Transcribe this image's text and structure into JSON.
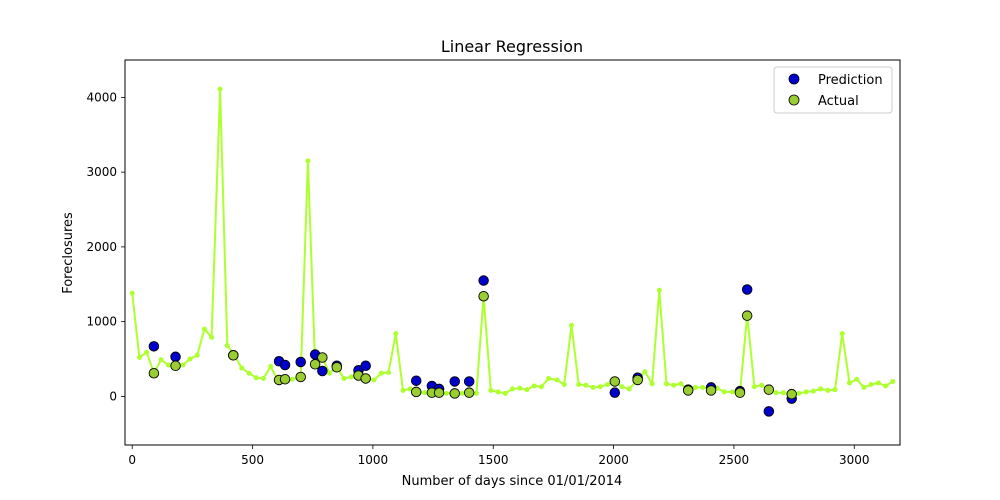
{
  "chart_data": {
    "type": "scatter",
    "title": "Linear Regression",
    "xlabel": "Number of days since 01/01/2014",
    "ylabel": "Foreclosures",
    "xlim": [
      -30,
      3190
    ],
    "ylim": [
      -650,
      4500
    ],
    "xticks": [
      0,
      500,
      1000,
      1500,
      2000,
      2500,
      3000
    ],
    "yticks": [
      0,
      1000,
      2000,
      3000,
      4000
    ],
    "grid": false,
    "legend_position": "top-right",
    "line": {
      "color": "#adff2f",
      "x": [
        0,
        30,
        60,
        90,
        120,
        150,
        180,
        210,
        240,
        270,
        300,
        330,
        365,
        395,
        425,
        455,
        485,
        515,
        545,
        575,
        605,
        635,
        665,
        700,
        730,
        760,
        790,
        820,
        850,
        880,
        910,
        940,
        975,
        1005,
        1035,
        1065,
        1095,
        1125,
        1155,
        1185,
        1215,
        1245,
        1275,
        1305,
        1340,
        1370,
        1400,
        1430,
        1460,
        1490,
        1520,
        1550,
        1580,
        1610,
        1640,
        1670,
        1700,
        1730,
        1765,
        1795,
        1825,
        1855,
        1885,
        1915,
        1945,
        1975,
        2005,
        2035,
        2065,
        2100,
        2130,
        2160,
        2190,
        2220,
        2250,
        2280,
        2310,
        2340,
        2370,
        2400,
        2430,
        2460,
        2495,
        2525,
        2555,
        2585,
        2615,
        2645,
        2675,
        2705,
        2740,
        2770,
        2800,
        2830,
        2860,
        2890,
        2920,
        2950,
        2980,
        3010,
        3040,
        3070,
        3100,
        3130,
        3160
      ],
      "y": [
        1380,
        520,
        590,
        310,
        490,
        420,
        410,
        420,
        500,
        550,
        900,
        790,
        4110,
        680,
        550,
        380,
        310,
        250,
        240,
        400,
        220,
        230,
        230,
        260,
        3150,
        430,
        520,
        310,
        390,
        240,
        260,
        290,
        240,
        220,
        310,
        320,
        840,
        80,
        100,
        60,
        50,
        50,
        50,
        40,
        50,
        40,
        50,
        40,
        1340,
        80,
        60,
        40,
        100,
        110,
        90,
        140,
        130,
        240,
        220,
        160,
        950,
        160,
        150,
        120,
        130,
        160,
        200,
        130,
        100,
        220,
        330,
        170,
        1420,
        170,
        150,
        170,
        80,
        120,
        120,
        100,
        110,
        60,
        60,
        50,
        1080,
        130,
        150,
        90,
        50,
        50,
        30,
        40,
        60,
        70,
        100,
        80,
        90,
        840,
        180,
        230,
        120,
        160,
        180,
        140,
        200
      ]
    },
    "series": [
      {
        "name": "Prediction",
        "color": "#0000cd",
        "x": [
          90,
          180,
          420,
          610,
          635,
          700,
          760,
          790,
          850,
          940,
          970,
          1180,
          1245,
          1275,
          1340,
          1400,
          1460,
          2005,
          2100,
          2310,
          2405,
          2525,
          2555,
          2645,
          2740
        ],
        "y": [
          670,
          530,
          550,
          470,
          420,
          460,
          560,
          340,
          410,
          350,
          410,
          210,
          140,
          100,
          200,
          200,
          1550,
          50,
          250,
          90,
          120,
          70,
          1430,
          -200,
          -30
        ]
      },
      {
        "name": "Actual",
        "color": "#9acd32",
        "x": [
          90,
          180,
          420,
          610,
          635,
          700,
          760,
          790,
          850,
          940,
          970,
          1180,
          1245,
          1275,
          1340,
          1400,
          1460,
          2005,
          2100,
          2310,
          2405,
          2525,
          2555,
          2645,
          2740
        ],
        "y": [
          310,
          410,
          550,
          220,
          230,
          260,
          430,
          520,
          390,
          280,
          240,
          60,
          50,
          50,
          40,
          50,
          1340,
          200,
          220,
          80,
          80,
          50,
          1080,
          90,
          30
        ]
      }
    ]
  }
}
